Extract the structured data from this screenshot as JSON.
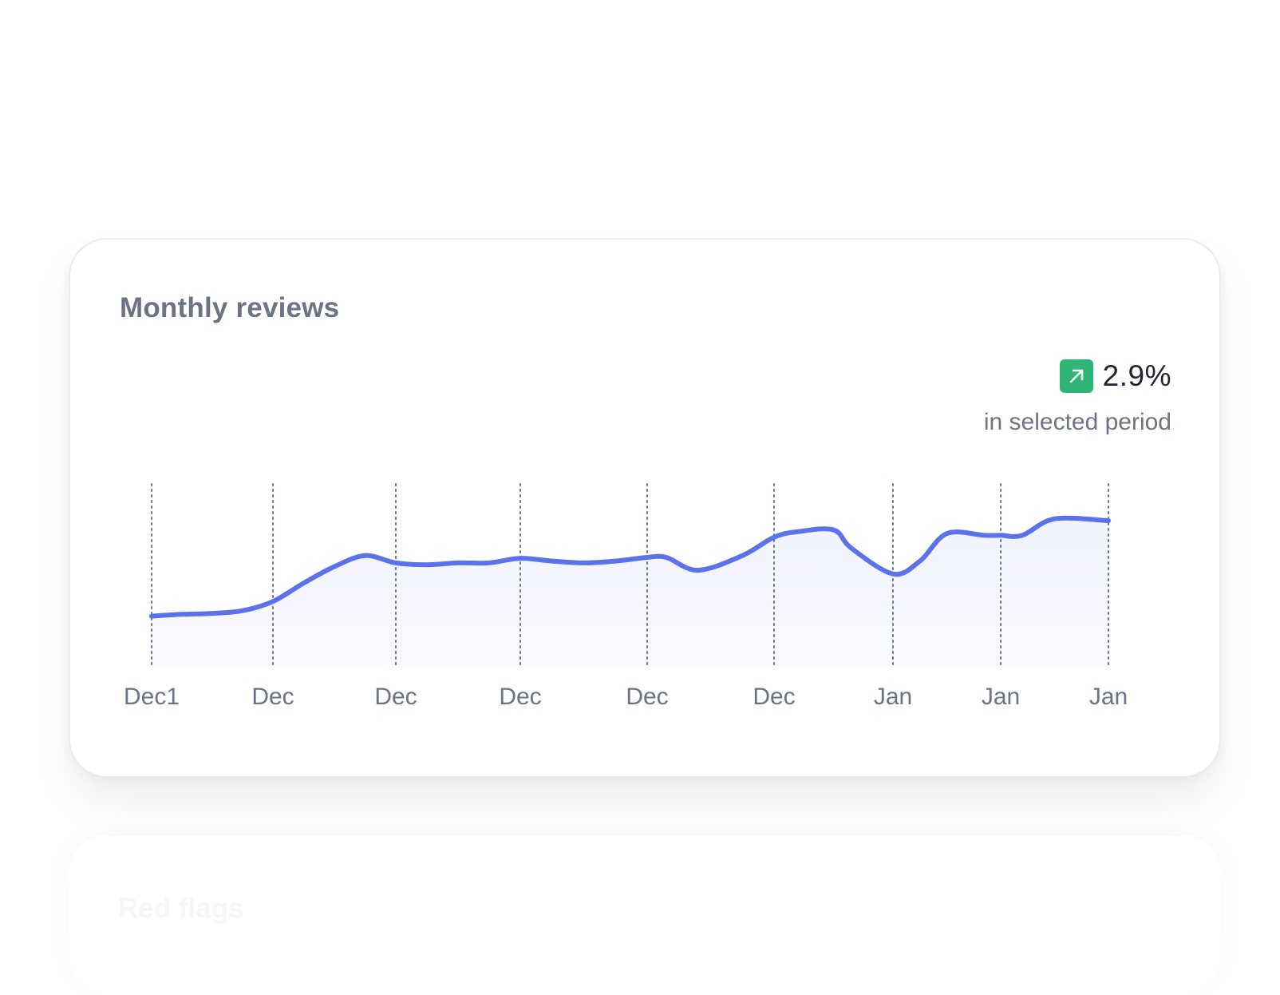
{
  "card": {
    "title": "Monthly reviews",
    "stat_value": "2.9%",
    "stat_icon": "arrow-up-right-icon",
    "stat_caption": "in selected period",
    "accent_color": "#5b72ea",
    "positive_color": "#2fb676"
  },
  "chart_data": {
    "type": "line",
    "title": "",
    "xlabel": "",
    "ylabel": "",
    "x_tick_labels": [
      "Dec1",
      "Dec",
      "Dec",
      "Dec",
      "Dec",
      "Dec",
      "Jan",
      "Jan",
      "Jan"
    ],
    "grid": "vertical-dotted",
    "area_fill": true,
    "ylim": [
      0,
      100
    ],
    "series": [
      {
        "x": [
          0,
          0.25,
          0.5,
          0.75,
          1,
          1.25,
          1.5,
          1.75,
          2,
          2.25,
          2.5,
          2.75,
          3,
          3.25,
          3.5,
          3.75,
          4,
          4.15,
          4.4,
          4.75,
          5,
          5.2,
          5.5,
          5.65,
          6,
          6.25,
          6.5,
          6.85,
          7,
          7.2,
          7.5,
          8
        ],
        "values": [
          28,
          29,
          29.5,
          31,
          36,
          46,
          55,
          61,
          57,
          56,
          57,
          57,
          59.5,
          58,
          57,
          58,
          60,
          60,
          53,
          61,
          71,
          74,
          75,
          65,
          51,
          58,
          73,
          72,
          72,
          72,
          81,
          80
        ]
      }
    ]
  },
  "next_card": {
    "title": "Red flags"
  }
}
